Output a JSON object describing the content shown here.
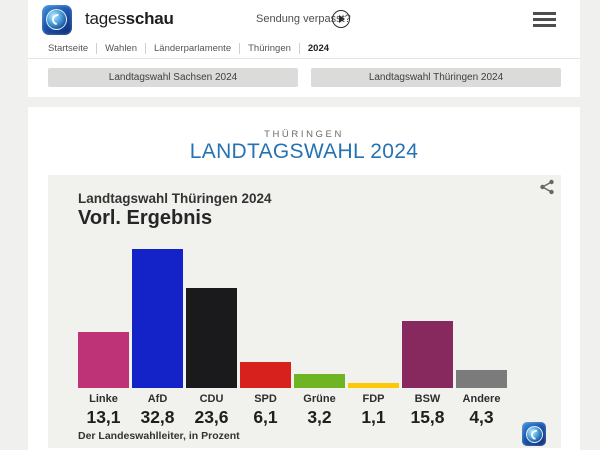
{
  "header": {
    "brand_part1": "tages",
    "brand_part2": "schau",
    "sendung_verpasst": "Sendung verpasst?",
    "breadcrumb": [
      "Startseite",
      "Wahlen",
      "Länderparlamente",
      "Thüringen",
      "2024"
    ]
  },
  "tabs": [
    {
      "label": "Landtagswahl Sachsen 2024"
    },
    {
      "label": "Landtagswahl Thüringen 2024"
    }
  ],
  "page": {
    "kicker": "THÜRINGEN",
    "title": "LANDTAGSWAHL 2024",
    "title_color": "#2673b4"
  },
  "chart_data": {
    "type": "bar",
    "title": "Landtagswahl Thüringen 2024",
    "subtitle": "Vorl. Ergebnis",
    "source": "Der Landeswahlleiter, in Prozent",
    "unit": "Prozent",
    "categories": [
      "Linke",
      "AfD",
      "CDU",
      "SPD",
      "Grüne",
      "FDP",
      "BSW",
      "Andere"
    ],
    "values": [
      13.1,
      32.8,
      23.6,
      6.1,
      3.2,
      1.1,
      15.8,
      4.3
    ],
    "value_labels": [
      "13,1",
      "32,8",
      "23,6",
      "6,1",
      "3,2",
      "1,1",
      "15,8",
      "4,3"
    ],
    "colors": [
      "#be3278",
      "#1423c8",
      "#1a1a1c",
      "#d7211d",
      "#6eb423",
      "#fdc805",
      "#87285f",
      "#7b7b7b"
    ],
    "ylim": [
      0,
      33
    ],
    "grid": false,
    "legend": "none"
  }
}
